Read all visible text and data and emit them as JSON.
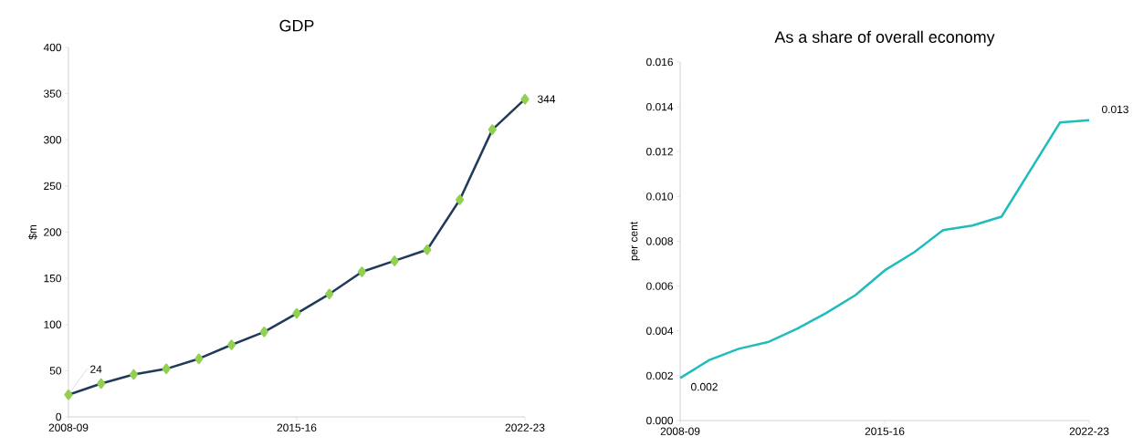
{
  "chart_data": [
    {
      "type": "line",
      "title": "GDP",
      "ylabel": "$m",
      "categories": [
        "2008-09",
        null,
        null,
        null,
        null,
        null,
        null,
        "2015-16",
        null,
        null,
        null,
        null,
        null,
        null,
        "2022-23"
      ],
      "series": [
        {
          "color": "#1f3a5a",
          "values": [
            24,
            36,
            46,
            52,
            63,
            78,
            92,
            112,
            133,
            157,
            169,
            181,
            235,
            311,
            344
          ]
        }
      ],
      "marker": "diamond",
      "ylim": [
        0,
        400
      ],
      "yticks": [
        0,
        50,
        100,
        150,
        200,
        250,
        300,
        350,
        400
      ],
      "annotations": [
        {
          "text": "24",
          "x": "2008-09",
          "y": 24
        },
        {
          "text": "344",
          "x": "2022-23",
          "y": 344
        }
      ]
    },
    {
      "type": "line",
      "title": "As a share of overall economy",
      "ylabel": "per cent",
      "categories": [
        "2008-09",
        null,
        null,
        null,
        null,
        null,
        null,
        "2015-16",
        null,
        null,
        null,
        null,
        null,
        null,
        "2022-23"
      ],
      "series": [
        {
          "color": "#1fbcbc",
          "values": [
            0.0019,
            0.0027,
            0.0032,
            0.0035,
            0.0041,
            0.0048,
            0.0056,
            0.0067,
            0.0075,
            0.0085,
            0.0087,
            0.0091,
            0.0112,
            0.0133,
            0.0134
          ]
        }
      ],
      "ylim": [
        0,
        0.016
      ],
      "yticks": [
        {
          "value": 0,
          "label": "0.000"
        },
        {
          "value": 0.002,
          "label": "0.002"
        },
        {
          "value": 0.004,
          "label": "0.004"
        },
        {
          "value": 0.006,
          "label": "0.006"
        },
        {
          "value": 0.008,
          "label": "0.008"
        },
        {
          "value": 0.01,
          "label": "0.010"
        },
        {
          "value": 0.012,
          "label": "0.012"
        },
        {
          "value": 0.014,
          "label": "0.014"
        },
        {
          "value": 0.016,
          "label": "0.016"
        }
      ],
      "annotations": [
        {
          "text": "0.002",
          "x": "2008-09",
          "y": 0.0019
        },
        {
          "text": "0.013",
          "x": "2022-23",
          "y": 0.0134
        }
      ]
    }
  ]
}
